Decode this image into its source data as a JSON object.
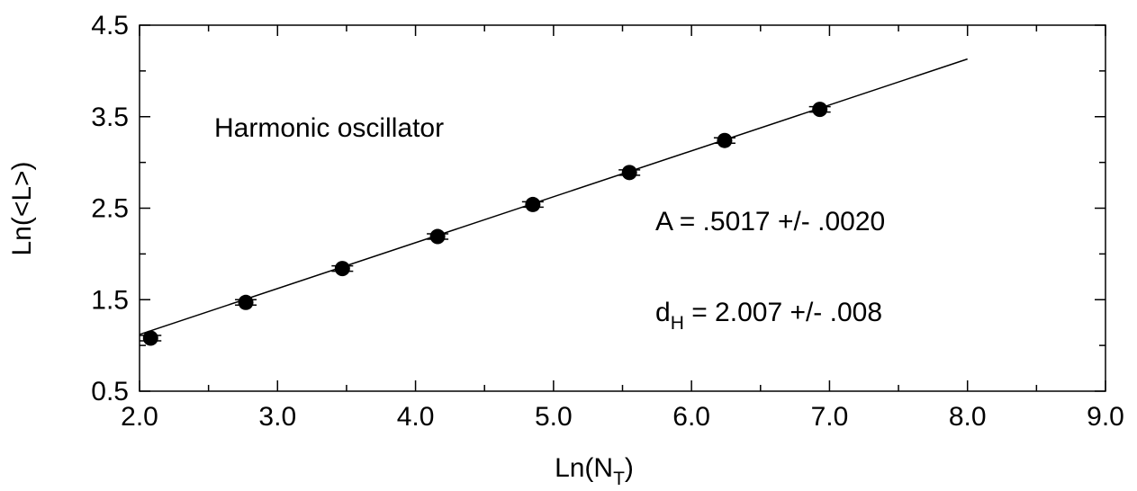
{
  "chart_data": {
    "type": "scatter",
    "title": "",
    "xlabel_main": "Ln(N",
    "xlabel_sub": "T",
    "xlabel_close": ")",
    "ylabel": "Ln(<L>)",
    "xlim": [
      2.0,
      9.0
    ],
    "ylim": [
      0.5,
      4.5
    ],
    "x_ticks": [
      "2.0",
      "3.0",
      "4.0",
      "5.0",
      "6.0",
      "7.0",
      "8.0",
      "9.0"
    ],
    "y_ticks": [
      "0.5",
      "1.5",
      "2.5",
      "3.5",
      "4.5"
    ],
    "series": [
      {
        "x": [
          2.08,
          2.77,
          3.47,
          4.16,
          4.85,
          5.55,
          6.24,
          6.93
        ],
        "y": [
          1.08,
          1.47,
          1.84,
          2.19,
          2.54,
          2.89,
          3.24,
          3.58
        ]
      }
    ],
    "fit_line": {
      "x": [
        2.0,
        8.0
      ],
      "y": [
        1.12,
        4.13
      ]
    },
    "annotations": {
      "label": "Harmonic oscillator",
      "fit_A": "A = .5017 +/- .0020",
      "fit_dH_main": "d",
      "fit_dH_sub": "H",
      "fit_dH_rest": " = 2.007 +/- .008"
    },
    "grid": false,
    "colors": {
      "points": "#000000",
      "line": "#000000",
      "axes": "#000000"
    }
  }
}
